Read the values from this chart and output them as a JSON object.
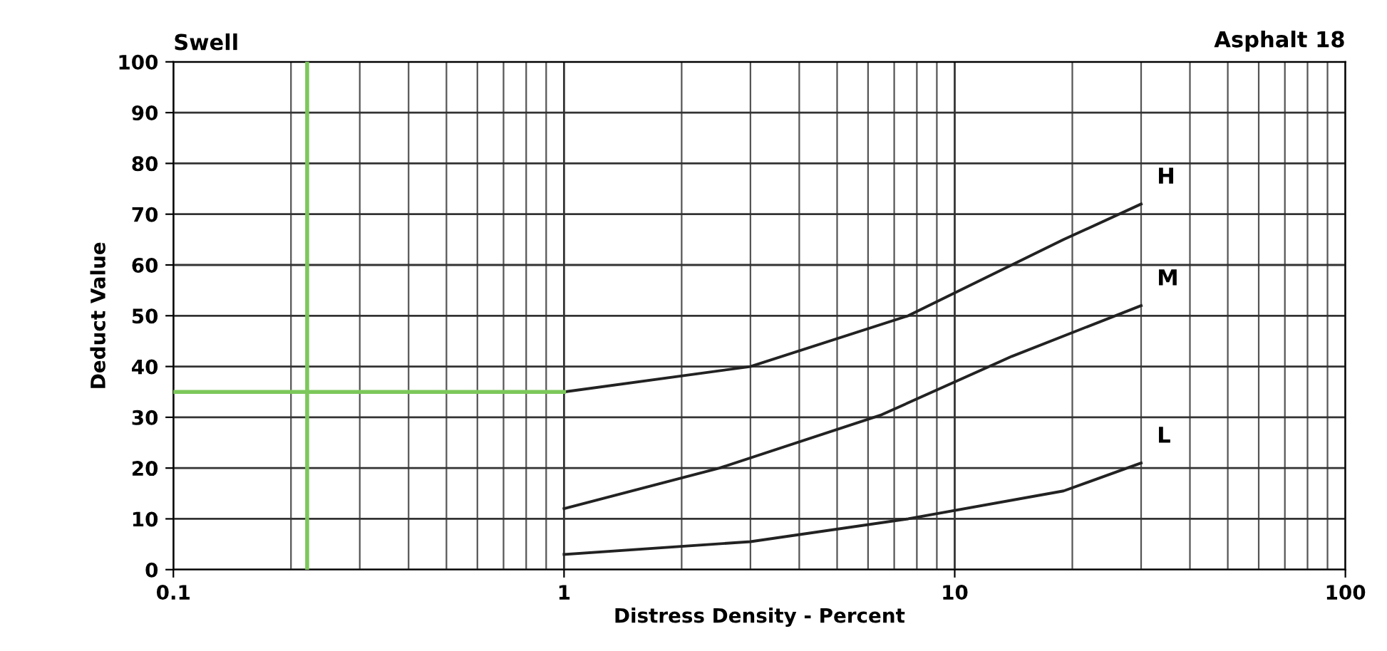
{
  "chart_data": {
    "type": "line",
    "title": "Swell",
    "annotations": [
      "Asphalt 18"
    ],
    "xlabel": "Distress Density - Percent",
    "ylabel": "Deduct Value",
    "log": "x",
    "xlim": [
      0.1,
      100
    ],
    "xticks": [
      {
        "value": 0.1,
        "label": "0.1"
      },
      1,
      10,
      100
    ],
    "ylim": [
      0,
      100
    ],
    "yticks": [
      0,
      10,
      20,
      30,
      40,
      50,
      60,
      70,
      80,
      90,
      100
    ],
    "grid": true,
    "legend": false,
    "marker": "none",
    "line_style": "solid",
    "series": [
      {
        "name": "H",
        "color": "#222222",
        "x": [
          1,
          3,
          7.6,
          19,
          30
        ],
        "values": [
          35,
          40,
          50,
          65,
          72
        ]
      },
      {
        "name": "M",
        "color": "#222222",
        "x": [
          1,
          2.5,
          6.5,
          14,
          30
        ],
        "values": [
          12,
          20,
          30.5,
          42,
          52
        ]
      },
      {
        "name": "L",
        "color": "#222222",
        "x": [
          1,
          3,
          7.6,
          19,
          30
        ],
        "values": [
          3,
          5.5,
          10,
          15.5,
          21
        ]
      },
      {
        "color": "#7cc85a",
        "x": [
          0.1,
          1
        ],
        "values": [
          35,
          35
        ]
      }
    ],
    "ref_lines": [
      {
        "axis": "x",
        "value": 0.22,
        "color": "#7cc85a"
      }
    ]
  }
}
